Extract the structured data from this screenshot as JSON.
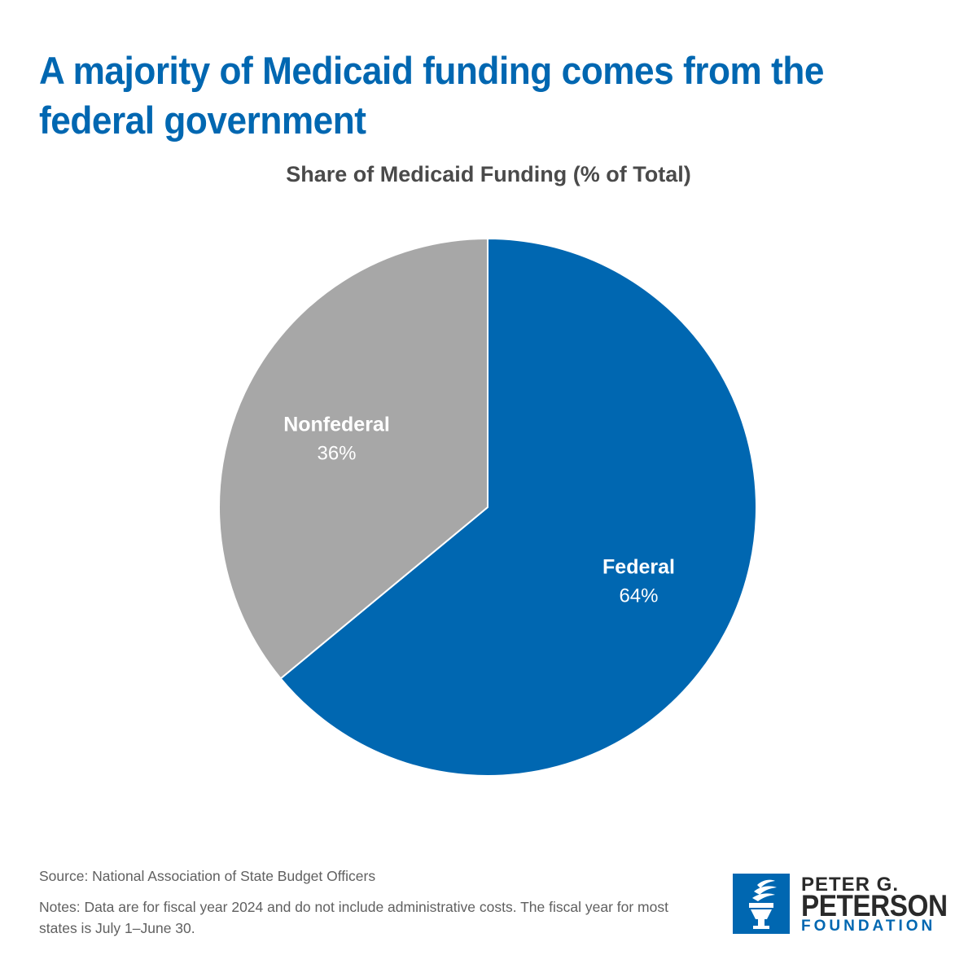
{
  "headline": "A majority of Medicaid funding comes from the federal government",
  "chart_data": {
    "type": "pie",
    "title": "Share of Medicaid Funding (% of Total)",
    "unit": "%",
    "slices": [
      {
        "name": "Federal",
        "value": 64,
        "label": "64%",
        "color": "#0067b1"
      },
      {
        "name": "Nonfederal",
        "value": 36,
        "label": "36%",
        "color": "#a7a7a7"
      }
    ]
  },
  "footer": {
    "source": "Source: National Association of State Budget Officers",
    "notes": "Notes: Data are for fiscal year 2024 and do not include administrative costs. The fiscal year for most states is July 1–June 30."
  },
  "logo": {
    "line1": "PETER G.",
    "line2": "PETERSON",
    "line3": "FOUNDATION"
  },
  "colors": {
    "accent": "#0067b1",
    "gray_slice": "#a7a7a7",
    "body_text": "#606060"
  }
}
